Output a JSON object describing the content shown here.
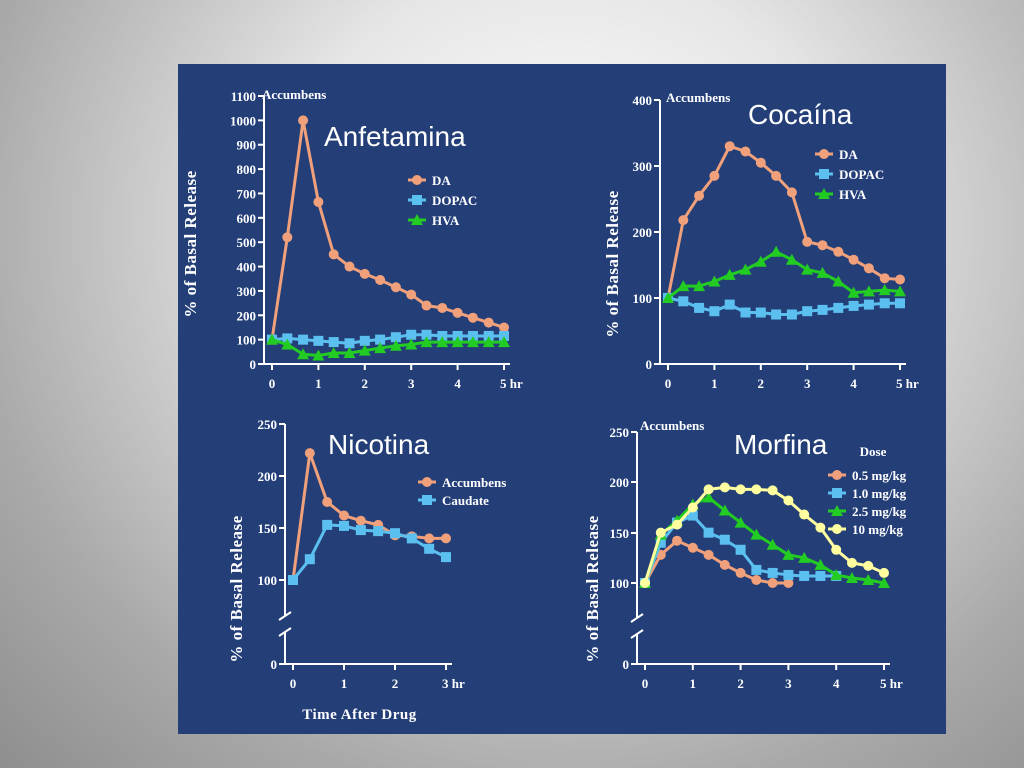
{
  "chart_data": [
    {
      "type": "line",
      "title": "Anfetamina",
      "region_label": "Accumbens",
      "ylabel": "% of Basal Release",
      "xlabel": "",
      "ylim": [
        0,
        1100
      ],
      "xlim": [
        0,
        5
      ],
      "x_ticks": [
        "0",
        "1",
        "2",
        "3",
        "4",
        "5 hr"
      ],
      "y_ticks": [
        "0",
        "100",
        "200",
        "300",
        "400",
        "500",
        "600",
        "700",
        "800",
        "900",
        "1000",
        "1100"
      ],
      "legend": "right",
      "series": [
        {
          "name": "DA",
          "color": "#f0a07a",
          "marker": "circle",
          "x": [
            0,
            0.33,
            0.67,
            1,
            1.33,
            1.67,
            2,
            2.33,
            2.67,
            3,
            3.33,
            3.67,
            4,
            4.33,
            4.67,
            5
          ],
          "y": [
            100,
            520,
            1000,
            665,
            450,
            400,
            370,
            345,
            315,
            285,
            240,
            230,
            210,
            190,
            170,
            150
          ]
        },
        {
          "name": "DOPAC",
          "color": "#5bc0f0",
          "marker": "square",
          "x": [
            0,
            0.33,
            0.67,
            1,
            1.33,
            1.67,
            2,
            2.33,
            2.67,
            3,
            3.33,
            3.67,
            4,
            4.33,
            4.67,
            5
          ],
          "y": [
            100,
            105,
            100,
            95,
            90,
            85,
            95,
            100,
            110,
            120,
            120,
            115,
            115,
            115,
            115,
            115
          ]
        },
        {
          "name": "HVA",
          "color": "#22cc22",
          "marker": "triangle",
          "x": [
            0,
            0.33,
            0.67,
            1,
            1.33,
            1.67,
            2,
            2.33,
            2.67,
            3,
            3.33,
            3.67,
            4,
            4.33,
            4.67,
            5
          ],
          "y": [
            100,
            80,
            40,
            35,
            45,
            45,
            55,
            65,
            75,
            80,
            90,
            90,
            90,
            90,
            90,
            90
          ]
        }
      ]
    },
    {
      "type": "line",
      "title": "Cocaína",
      "region_label": "Accumbens",
      "ylabel": "% of Basal Release",
      "xlabel": "",
      "ylim": [
        0,
        400
      ],
      "xlim": [
        0,
        5
      ],
      "x_ticks": [
        "0",
        "1",
        "2",
        "3",
        "4",
        "5 hr"
      ],
      "y_ticks": [
        "0",
        "100",
        "200",
        "300",
        "400"
      ],
      "legend": "right",
      "series": [
        {
          "name": "DA",
          "color": "#f0a07a",
          "marker": "circle",
          "x": [
            0,
            0.33,
            0.67,
            1,
            1.33,
            1.67,
            2,
            2.33,
            2.67,
            3,
            3.33,
            3.67,
            4,
            4.33,
            4.67,
            5
          ],
          "y": [
            100,
            218,
            255,
            285,
            330,
            322,
            305,
            285,
            260,
            185,
            180,
            170,
            158,
            145,
            130,
            128
          ]
        },
        {
          "name": "DOPAC",
          "color": "#5bc0f0",
          "marker": "square",
          "x": [
            0,
            0.33,
            0.67,
            1,
            1.33,
            1.67,
            2,
            2.33,
            2.67,
            3,
            3.33,
            3.67,
            4,
            4.33,
            4.67,
            5
          ],
          "y": [
            100,
            95,
            85,
            80,
            90,
            78,
            78,
            75,
            75,
            80,
            82,
            85,
            88,
            90,
            92,
            92
          ]
        },
        {
          "name": "HVA",
          "color": "#22cc22",
          "marker": "triangle",
          "x": [
            0,
            0.33,
            0.67,
            1,
            1.33,
            1.67,
            2,
            2.33,
            2.67,
            3,
            3.33,
            3.67,
            4,
            4.33,
            4.67,
            5
          ],
          "y": [
            100,
            118,
            118,
            125,
            135,
            143,
            155,
            170,
            158,
            143,
            138,
            125,
            108,
            110,
            112,
            110
          ]
        }
      ]
    },
    {
      "type": "line",
      "title": "Nicotina",
      "region_label": "",
      "ylabel": "% of Basal Release",
      "xlabel": "Time After Drug",
      "ylim": [
        0,
        250
      ],
      "xlim": [
        0,
        3
      ],
      "x_ticks": [
        "0",
        "1",
        "2",
        "3 hr"
      ],
      "y_ticks": [
        "0",
        "100",
        "150",
        "200",
        "250"
      ],
      "axis_break": true,
      "legend": "right",
      "series": [
        {
          "name": "Accumbens",
          "color": "#f0a07a",
          "marker": "circle",
          "x": [
            0,
            0.33,
            0.67,
            1,
            1.33,
            1.67,
            2,
            2.33,
            2.67,
            3
          ],
          "y": [
            100,
            222,
            175,
            162,
            157,
            153,
            143,
            142,
            140,
            140
          ]
        },
        {
          "name": "Caudate",
          "color": "#5bc0f0",
          "marker": "square",
          "x": [
            0,
            0.33,
            0.67,
            1,
            1.33,
            1.67,
            2,
            2.33,
            2.67,
            3
          ],
          "y": [
            100,
            120,
            153,
            152,
            148,
            147,
            145,
            140,
            130,
            122
          ]
        }
      ]
    },
    {
      "type": "line",
      "title": "Morfina",
      "region_label": "Accumbens",
      "ylabel": "% of Basal Release",
      "xlabel": "",
      "ylim": [
        0,
        250
      ],
      "xlim": [
        0,
        5
      ],
      "x_ticks": [
        "0",
        "1",
        "2",
        "3",
        "4",
        "5 hr"
      ],
      "y_ticks": [
        "0",
        "100",
        "150",
        "200",
        "250"
      ],
      "axis_break": true,
      "legend_title": "Dose",
      "legend": "right",
      "series": [
        {
          "name": "0.5 mg/kg",
          "color": "#f0a07a",
          "marker": "circle",
          "x": [
            0,
            0.33,
            0.67,
            1,
            1.33,
            1.67,
            2,
            2.33,
            2.67,
            3
          ],
          "y": [
            100,
            128,
            142,
            135,
            128,
            118,
            110,
            103,
            100,
            100
          ]
        },
        {
          "name": "1.0 mg/kg",
          "color": "#5bc0f0",
          "marker": "square",
          "x": [
            0,
            0.33,
            0.67,
            1,
            1.33,
            1.67,
            2,
            2.33,
            2.67,
            3,
            3.33,
            3.67,
            4
          ],
          "y": [
            100,
            140,
            160,
            167,
            150,
            143,
            133,
            113,
            110,
            108,
            107,
            107,
            107
          ]
        },
        {
          "name": "2.5 mg/kg",
          "color": "#22cc22",
          "marker": "triangle",
          "x": [
            0,
            0.33,
            0.67,
            1,
            1.33,
            1.67,
            2,
            2.33,
            2.67,
            3,
            3.33,
            3.67,
            4,
            4.33,
            4.67,
            5
          ],
          "y": [
            100,
            148,
            162,
            178,
            185,
            172,
            160,
            148,
            138,
            128,
            125,
            118,
            108,
            105,
            103,
            100
          ]
        },
        {
          "name": "10 mg/kg",
          "color": "#ffffa0",
          "marker": "circle",
          "x": [
            0,
            0.33,
            0.67,
            1,
            1.33,
            1.67,
            2,
            2.33,
            2.67,
            3,
            3.33,
            3.67,
            4,
            4.33,
            4.67,
            5
          ],
          "y": [
            100,
            150,
            158,
            175,
            193,
            195,
            193,
            193,
            192,
            182,
            168,
            155,
            133,
            120,
            117,
            110
          ]
        }
      ]
    }
  ]
}
